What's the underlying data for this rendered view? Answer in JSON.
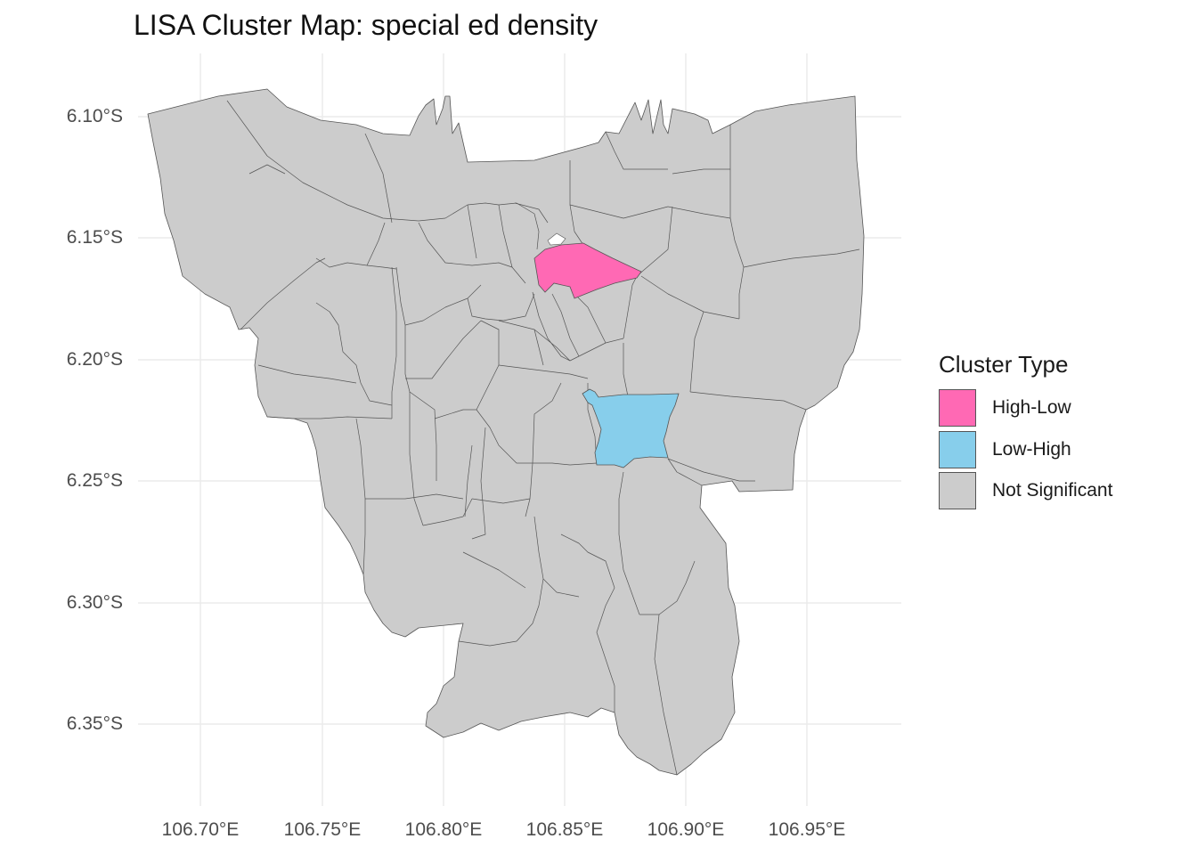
{
  "title": "LISA Cluster Map: special ed density",
  "axes": {
    "y_ticks": [
      "6.10°S",
      "6.15°S",
      "6.20°S",
      "6.25°S",
      "6.30°S",
      "6.35°S"
    ],
    "x_ticks": [
      "106.70°E",
      "106.75°E",
      "106.80°E",
      "106.85°E",
      "106.90°E",
      "106.95°E"
    ]
  },
  "legend": {
    "title": "Cluster Type",
    "items": [
      {
        "label": "High-Low",
        "color": "#FF69B4"
      },
      {
        "label": "Low-High",
        "color": "#87CEEB"
      },
      {
        "label": "Not Significant",
        "color": "#CCCCCC"
      }
    ]
  },
  "map": {
    "region_fill": "#CCCCCC",
    "border_color": "#555555",
    "highlighted_regions": [
      {
        "cluster": "High-Low",
        "color": "#FF69B4"
      },
      {
        "cluster": "Low-High",
        "color": "#87CEEB"
      }
    ]
  }
}
